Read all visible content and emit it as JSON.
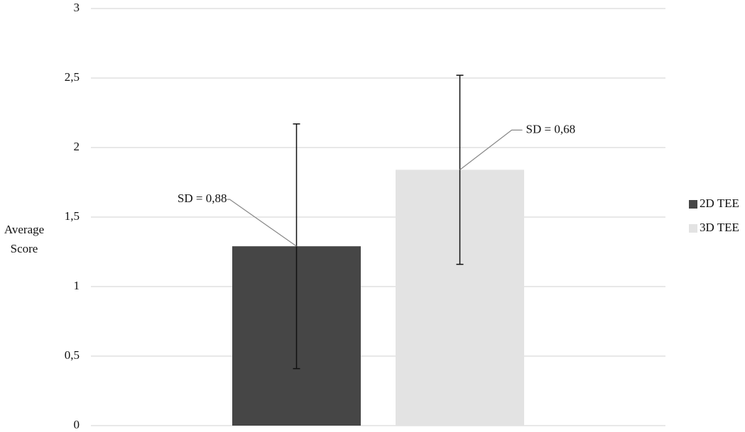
{
  "chart_data": {
    "type": "bar",
    "y_label": "Average Score",
    "series": [
      {
        "name": "2D TEE",
        "color": "#464646",
        "values": [
          1.29
        ],
        "errors": [
          0.88
        ],
        "error_labels": [
          "SD = 0,88"
        ]
      },
      {
        "name": "3D TEE",
        "color": "#e3e3e3",
        "values": [
          1.84
        ],
        "errors": [
          0.68
        ],
        "error_labels": [
          "SD = 0,68"
        ]
      }
    ],
    "ylim": [
      0,
      3
    ],
    "yticks": [
      0,
      {
        "value": 0.5,
        "label": "0,5"
      },
      1,
      {
        "value": 1.5,
        "label": "1,5"
      },
      2,
      {
        "value": 2.5,
        "label": "2,5"
      },
      3
    ],
    "grid": true,
    "legend": "right"
  }
}
